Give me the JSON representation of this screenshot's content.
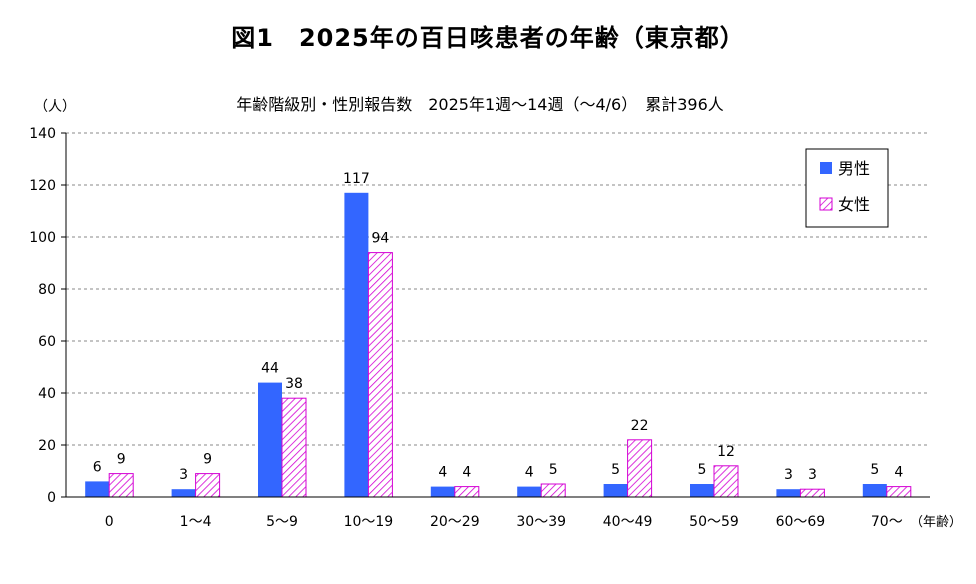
{
  "figure_title": "図1　2025年の百日咳患者の年齢（東京都）",
  "colors": {
    "male": "#3366ff",
    "female_stroke": "#d400d4",
    "grid": "#888888"
  },
  "chart_data": {
    "type": "bar",
    "title": "年齢階級別・性別報告数　2025年1週～14週（～4/6）　累計396人",
    "ylabel": "（人）",
    "xlabel": "（年齢）",
    "ylim": [
      0,
      140
    ],
    "yticks": [
      0,
      20,
      40,
      60,
      80,
      100,
      120,
      140
    ],
    "grid": true,
    "legend_position": "top-right",
    "categories": [
      "0",
      "1～4",
      "5～9",
      "10～19",
      "20～29",
      "30～39",
      "40～49",
      "50～59",
      "60～69",
      "70～"
    ],
    "series": [
      {
        "name": "男性",
        "values": [
          6,
          3,
          44,
          117,
          4,
          4,
          5,
          5,
          3,
          5
        ]
      },
      {
        "name": "女性",
        "values": [
          9,
          9,
          38,
          94,
          4,
          5,
          22,
          12,
          3,
          4
        ]
      }
    ]
  }
}
